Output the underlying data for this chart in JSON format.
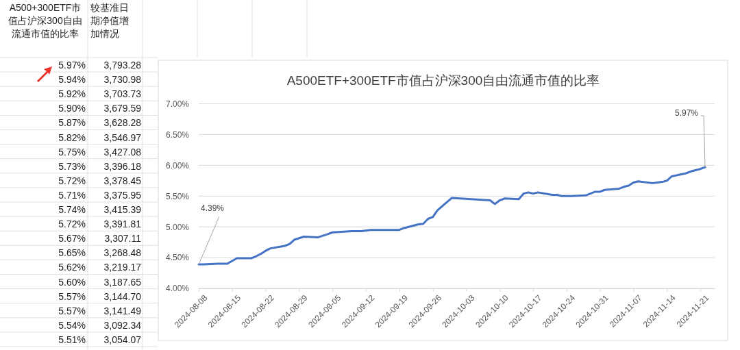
{
  "chart_data": [
    {
      "type": "other",
      "annotations": [
        "A500+300ETF市值占沪深300自由流通市值的比率",
        "较基准日期净值增加情况",
        "5.97%",
        "3,793.28",
        "5.94%",
        "3,730.98",
        "5.92%",
        "3,703.73",
        "5.90%",
        "3,679.59",
        "5.87%",
        "3,628.28",
        "5.82%",
        "3,546.97",
        "5.75%",
        "3,427.08",
        "5.73%",
        "3,396.18",
        "5.72%",
        "3,378.45",
        "5.71%",
        "3,375.95",
        "5.74%",
        "3,415.39",
        "5.72%",
        "3,391.81",
        "5.67%",
        "3,307.11",
        "5.65%",
        "3,268.48",
        "5.62%",
        "3,219.17",
        "5.60%",
        "3,187.65",
        "5.57%",
        "3,144.70",
        "5.57%",
        "3,141.49",
        "5.54%",
        "3,092.34",
        "5.51%",
        "3,054.07"
      ]
    },
    {
      "type": "line",
      "title": "A500ETF+300ETF市值占沪深300自由流通市值的比率",
      "x": [
        "2024-08-08",
        "2024-08-09",
        "2024-08-12",
        "2024-08-13",
        "2024-08-14",
        "2024-08-16",
        "2024-08-19",
        "2024-08-20",
        "2024-08-21",
        "2024-08-22",
        "2024-08-23",
        "2024-08-26",
        "2024-08-27",
        "2024-08-28",
        "2024-08-30",
        "2024-09-02",
        "2024-09-04",
        "2024-09-05",
        "2024-09-09",
        "2024-09-11",
        "2024-09-13",
        "2024-09-19",
        "2024-09-20",
        "2024-09-23",
        "2024-09-24",
        "2024-09-25",
        "2024-09-26",
        "2024-09-27",
        "2024-09-30",
        "2024-10-08",
        "2024-10-09",
        "2024-10-10",
        "2024-10-11",
        "2024-10-14",
        "2024-10-15",
        "2024-10-16",
        "2024-10-17",
        "2024-10-18",
        "2024-10-21",
        "2024-10-22",
        "2024-10-23",
        "2024-10-24",
        "2024-10-25",
        "2024-10-28",
        "2024-10-29",
        "2024-10-30",
        "2024-10-31",
        "2024-11-01",
        "2024-11-04",
        "2024-11-05",
        "2024-11-06",
        "2024-11-07",
        "2024-11-08",
        "2024-11-11",
        "2024-11-12",
        "2024-11-13",
        "2024-11-14",
        "2024-11-15",
        "2024-11-18",
        "2024-11-19",
        "2024-11-20",
        "2024-11-21",
        "2024-11-22"
      ],
      "series": [
        {
          "color": "#4472c4",
          "values": [
            4.39,
            4.39,
            4.4,
            4.4,
            4.4,
            4.49,
            4.49,
            4.52,
            4.56,
            4.61,
            4.65,
            4.69,
            4.72,
            4.79,
            4.84,
            4.83,
            4.88,
            4.91,
            4.93,
            4.93,
            4.95,
            4.95,
            4.98,
            5.04,
            5.05,
            5.13,
            5.16,
            5.27,
            5.47,
            5.43,
            5.37,
            5.43,
            5.46,
            5.45,
            5.54,
            5.56,
            5.54,
            5.56,
            5.52,
            5.52,
            5.5,
            5.5,
            5.5,
            5.51,
            5.54,
            5.57,
            5.57,
            5.6,
            5.62,
            5.65,
            5.67,
            5.72,
            5.74,
            5.71,
            5.72,
            5.73,
            5.75,
            5.82,
            5.87,
            5.9,
            5.92,
            5.94,
            5.97
          ]
        }
      ],
      "xlim": [
        "2024-08-08",
        "2024-11-24"
      ],
      "xticks": [
        "2024-08-08",
        "2024-08-15",
        "2024-08-22",
        "2024-08-29",
        "2024-09-05",
        "2024-09-12",
        "2024-09-19",
        "2024-09-26",
        "2024-10-03",
        "2024-10-10",
        "2024-10-17",
        "2024-10-24",
        "2024-10-31",
        "2024-11-07",
        "2024-11-14",
        "2024-11-21"
      ],
      "ylim": [
        4,
        7
      ],
      "yticks": [
        {
          "value": 4,
          "label": "4.00%"
        },
        {
          "value": 4.5,
          "label": "4.50%"
        },
        {
          "value": 5,
          "label": "5.00%"
        },
        {
          "value": 5.5,
          "label": "5.50%"
        },
        {
          "value": 6,
          "label": "6.00%"
        },
        {
          "value": 6.5,
          "label": "6.50%"
        },
        {
          "value": 7,
          "label": "7.00%"
        }
      ],
      "grid": "y",
      "annotations": [
        {
          "text": "4.39%",
          "x": "2024-08-08",
          "y": 4.39
        },
        {
          "text": "5.97%",
          "x": "2024-11-22",
          "y": 5.97
        }
      ]
    }
  ]
}
